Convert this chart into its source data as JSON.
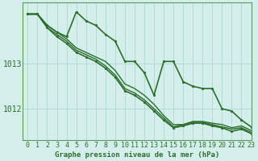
{
  "title": "Graphe pression niveau de la mer (hPa)",
  "background_color": "#d4eeec",
  "grid_color": "#add8d4",
  "line_color": "#2d6e2d",
  "spine_color": "#5a9a5a",
  "xlim": [
    -0.5,
    23
  ],
  "ylim": [
    1011.3,
    1014.35
  ],
  "yticks": [
    1012,
    1013
  ],
  "xticks": [
    0,
    1,
    2,
    3,
    4,
    5,
    6,
    7,
    8,
    9,
    10,
    11,
    12,
    13,
    14,
    15,
    16,
    17,
    18,
    19,
    20,
    21,
    22,
    23
  ],
  "series": [
    {
      "y": [
        1014.1,
        1014.1,
        1013.85,
        1013.7,
        1013.6,
        1014.15,
        1013.95,
        1013.85,
        1013.65,
        1013.5,
        1013.05,
        1013.05,
        1012.8,
        1012.3,
        1013.05,
        1013.05,
        1012.6,
        1012.5,
        1012.45,
        1012.45,
        1012.0,
        1011.95,
        1011.75,
        1011.6
      ],
      "marker": true,
      "lw": 1.2
    },
    {
      "y": [
        1014.1,
        1014.1,
        1013.85,
        1013.7,
        1013.55,
        1013.35,
        1013.25,
        1013.15,
        1013.05,
        1012.85,
        1012.55,
        1012.45,
        1012.3,
        1012.1,
        1011.85,
        1011.65,
        1011.65,
        1011.72,
        1011.72,
        1011.68,
        1011.65,
        1011.58,
        1011.62,
        1011.52
      ],
      "marker": false,
      "lw": 1.0
    },
    {
      "y": [
        1014.1,
        1014.1,
        1013.8,
        1013.65,
        1013.5,
        1013.3,
        1013.2,
        1013.1,
        1012.95,
        1012.75,
        1012.45,
        1012.35,
        1012.2,
        1012.0,
        1011.8,
        1011.6,
        1011.65,
        1011.7,
        1011.7,
        1011.65,
        1011.6,
        1011.55,
        1011.58,
        1011.48
      ],
      "marker": false,
      "lw": 1.0
    },
    {
      "y": [
        1014.1,
        1014.1,
        1013.8,
        1013.6,
        1013.45,
        1013.25,
        1013.15,
        1013.05,
        1012.9,
        1012.7,
        1012.4,
        1012.3,
        1012.15,
        1011.95,
        1011.75,
        1011.58,
        1011.62,
        1011.68,
        1011.68,
        1011.62,
        1011.58,
        1011.5,
        1011.55,
        1011.45
      ],
      "marker": true,
      "lw": 1.2
    }
  ],
  "xlabel_fontsize": 6,
  "ylabel_fontsize": 7,
  "title_fontsize": 6.5
}
